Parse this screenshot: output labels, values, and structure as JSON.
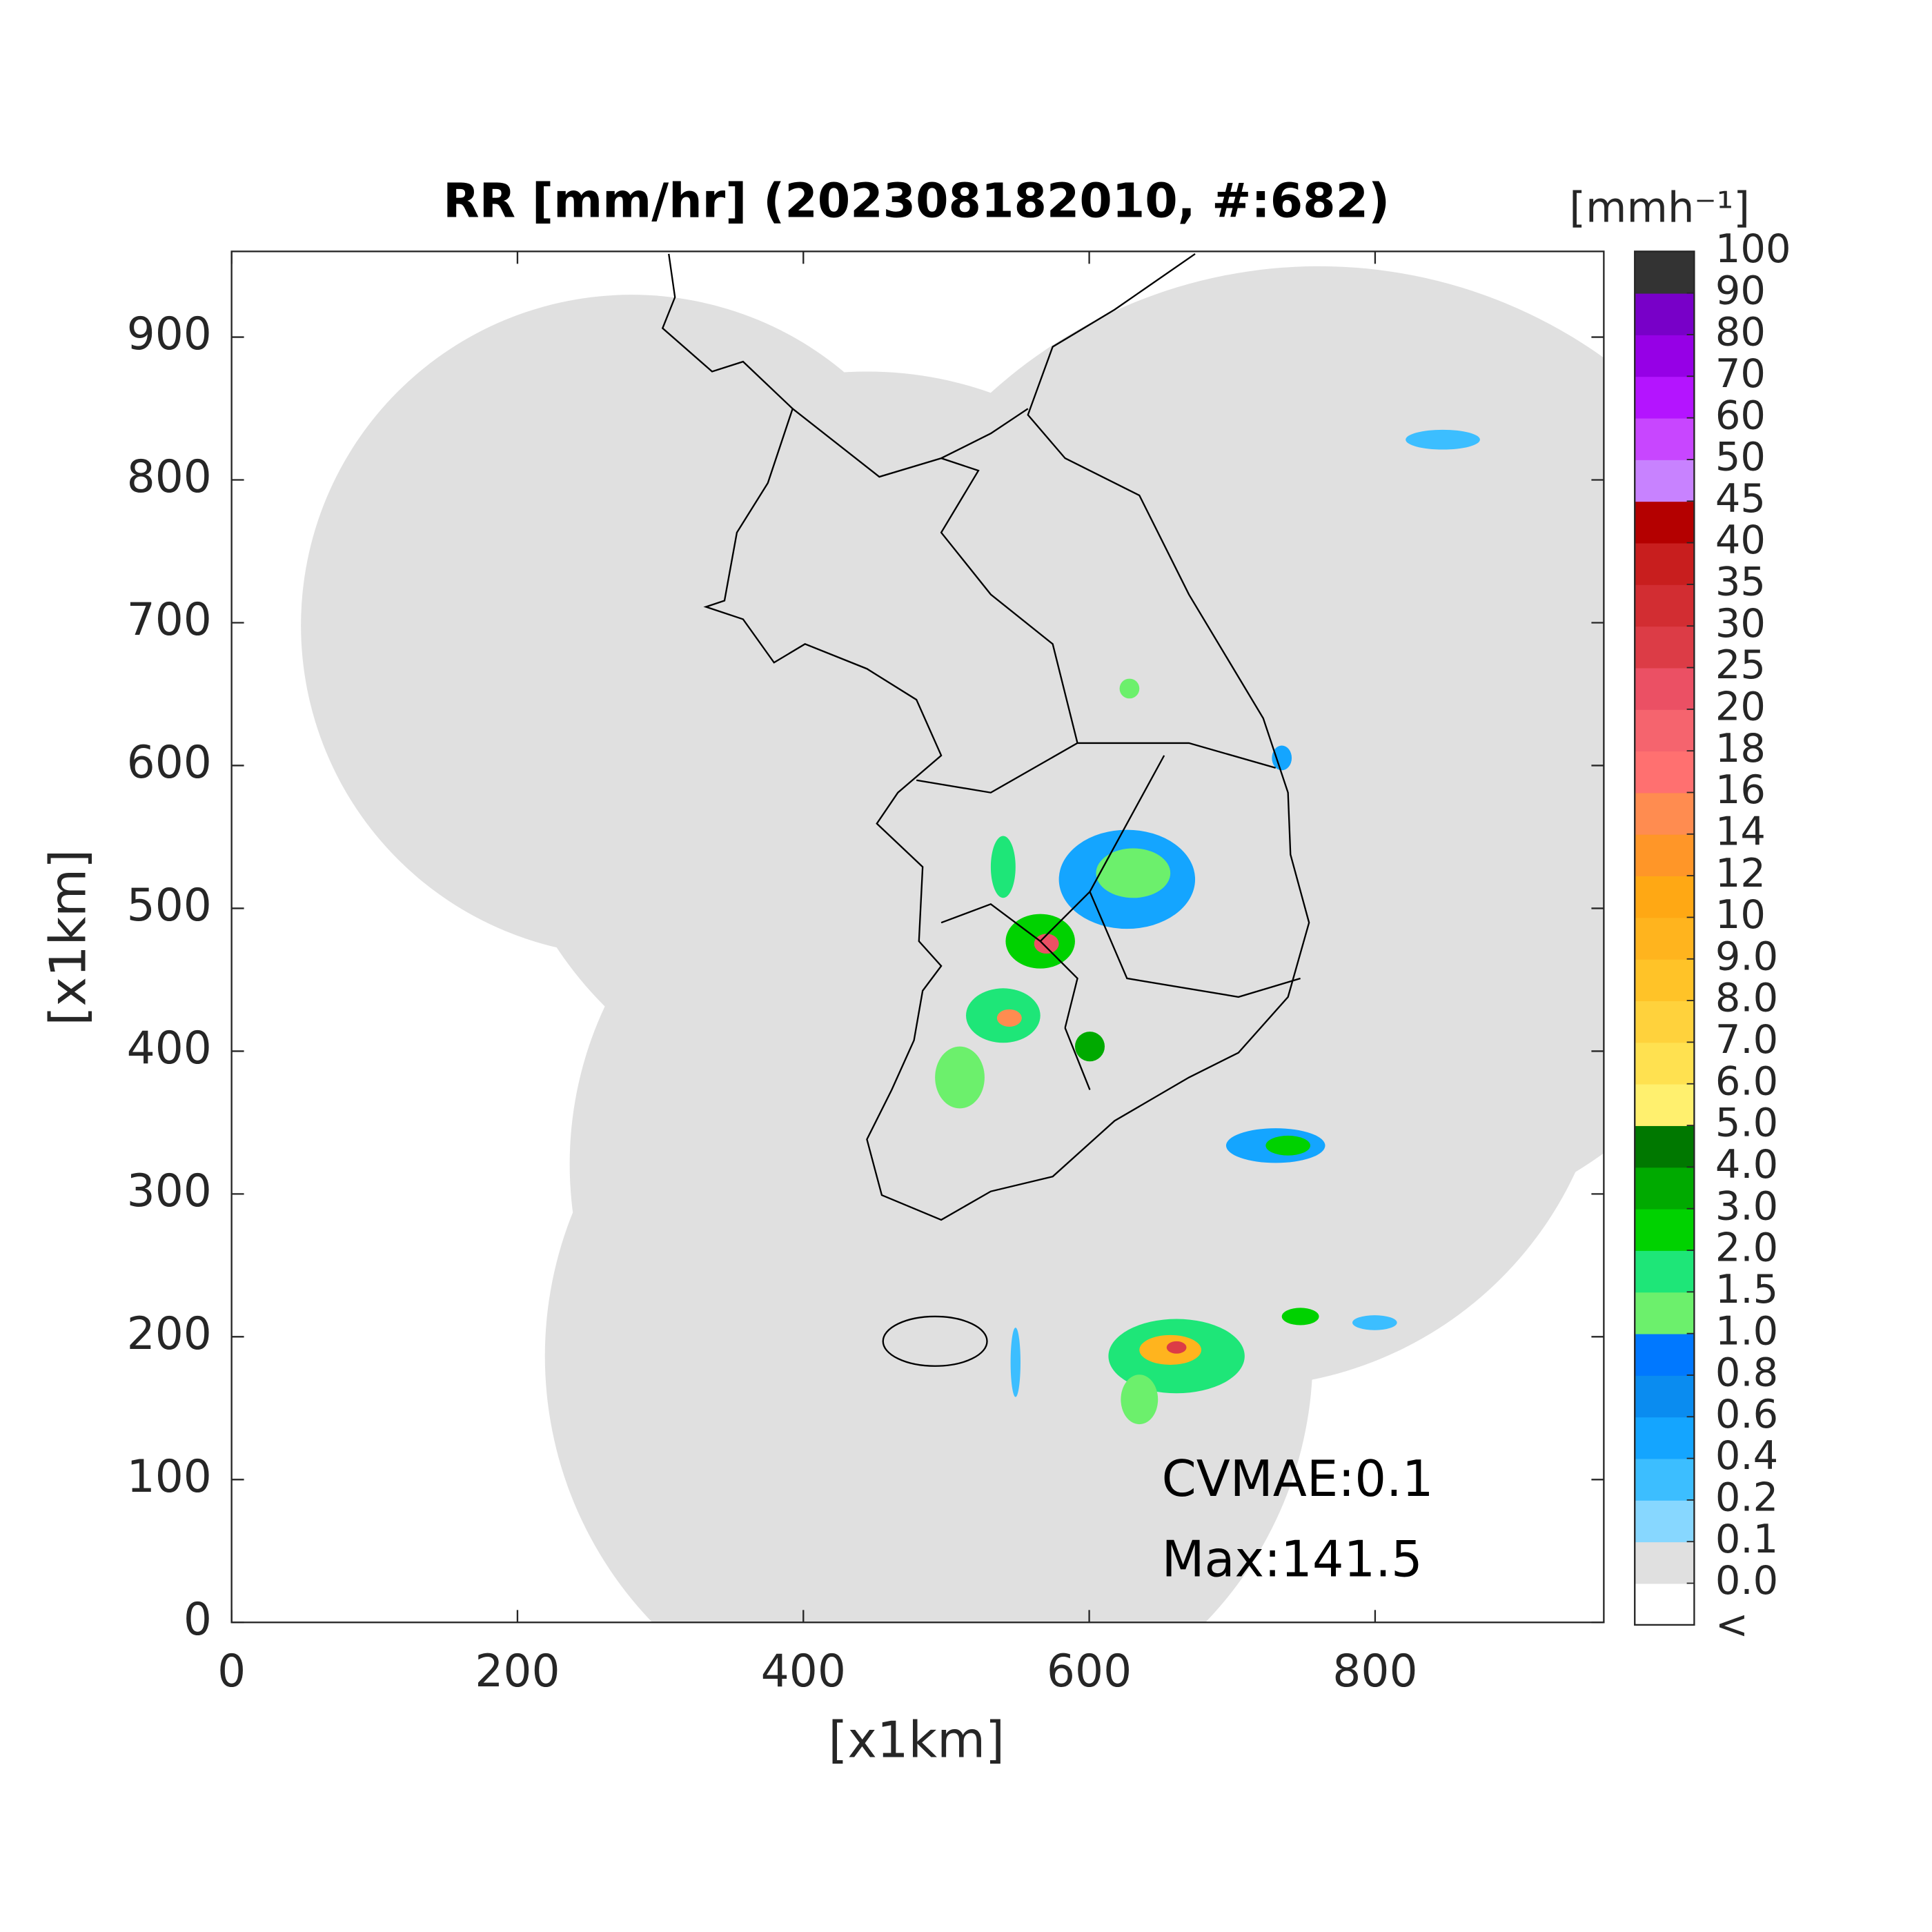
{
  "chart_data": {
    "type": "map",
    "title": "RR [mm/hr] (202308182010, #:682)",
    "xlabel": "[x1km]",
    "ylabel": "[x1km]",
    "xlim": [
      0,
      960
    ],
    "ylim": [
      0,
      960
    ],
    "xticks": [
      0,
      200,
      400,
      600,
      800
    ],
    "yticks": [
      0,
      100,
      200,
      300,
      400,
      500,
      600,
      700,
      800,
      900
    ],
    "annotations": [
      "CVMAE:0.1",
      "Max:141.5"
    ],
    "colorbar": {
      "title": "[mmh⁻¹]",
      "below_label": "<",
      "levels": [
        {
          "value": 0,
          "label": "0.0"
        },
        0.1,
        0.2,
        0.4,
        0.6,
        0.8,
        {
          "value": 1,
          "label": "1.0"
        },
        1.5,
        {
          "value": 2,
          "label": "2.0"
        },
        {
          "value": 3,
          "label": "3.0"
        },
        {
          "value": 4,
          "label": "4.0"
        },
        {
          "value": 5,
          "label": "5.0"
        },
        {
          "value": 6,
          "label": "6.0"
        },
        {
          "value": 7,
          "label": "7.0"
        },
        {
          "value": 8,
          "label": "8.0"
        },
        {
          "value": 9,
          "label": "9.0"
        },
        10,
        12,
        14,
        16,
        18,
        20,
        25,
        30,
        35,
        40,
        45,
        50,
        60,
        70,
        80,
        90,
        100
      ],
      "colors": [
        "#ffffff",
        "#e0e0e0",
        "#87d7ff",
        "#3cbeff",
        "#14a5ff",
        "#0a8cf0",
        "#0078ff",
        "#6cf06c",
        "#1ee678",
        "#00d200",
        "#00aa00",
        "#007800",
        "#fff06e",
        "#ffe150",
        "#ffd23c",
        "#ffc328",
        "#ffb41e",
        "#ffa814",
        "#ff9628",
        "#ff8c50",
        "#ff7070",
        "#f5646e",
        "#eb5064",
        "#dc3c46",
        "#d22d32",
        "#c81e1e",
        "#b40000",
        "#c882ff",
        "#c846ff",
        "#b414ff",
        "#9600e6",
        "#7800c8",
        "#333333"
      ]
    }
  }
}
